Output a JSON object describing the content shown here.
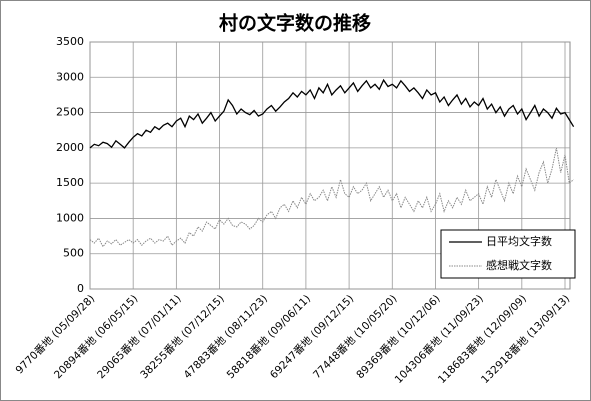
{
  "chart_data": {
    "type": "line",
    "title": "村の文字数の推移",
    "categories": [
      "9770番地 (05/09/28)",
      null,
      null,
      null,
      null,
      null,
      null,
      null,
      null,
      null,
      "20894番地 (06/05/15)",
      null,
      null,
      null,
      null,
      null,
      null,
      null,
      null,
      null,
      "29065番地 (07/01/11)",
      null,
      null,
      null,
      null,
      null,
      null,
      null,
      null,
      null,
      "38255番地 (07/12/15)",
      null,
      null,
      null,
      null,
      null,
      null,
      null,
      null,
      null,
      "47883番地 (08/11/23)",
      null,
      null,
      null,
      null,
      null,
      null,
      null,
      null,
      null,
      "58818番地 (09/06/11)",
      null,
      null,
      null,
      null,
      null,
      null,
      null,
      null,
      null,
      "69247番地 (09/12/15)",
      null,
      null,
      null,
      null,
      null,
      null,
      null,
      null,
      null,
      "77448番地 (10/05/20)",
      null,
      null,
      null,
      null,
      null,
      null,
      null,
      null,
      null,
      "89369番地 (10/12/06)",
      null,
      null,
      null,
      null,
      null,
      null,
      null,
      null,
      null,
      "104306番地 (11/09/23)",
      null,
      null,
      null,
      null,
      null,
      null,
      null,
      null,
      null,
      "118683番地 (12/09/09)",
      null,
      null,
      null,
      null,
      null,
      null,
      null,
      null,
      null,
      "132918番地 (13/09/13)",
      null,
      null
    ],
    "series": [
      {
        "name": "日平均文字数",
        "color": "#000000",
        "values": [
          2000,
          2050,
          2030,
          2080,
          2060,
          2010,
          2100,
          2050,
          2000,
          2080,
          2150,
          2200,
          2170,
          2250,
          2220,
          2300,
          2260,
          2320,
          2350,
          2300,
          2380,
          2420,
          2300,
          2450,
          2400,
          2480,
          2350,
          2420,
          2500,
          2380,
          2450,
          2520,
          2680,
          2600,
          2480,
          2550,
          2500,
          2470,
          2530,
          2450,
          2480,
          2550,
          2600,
          2520,
          2580,
          2650,
          2700,
          2780,
          2720,
          2800,
          2750,
          2820,
          2700,
          2850,
          2780,
          2900,
          2750,
          2820,
          2880,
          2780,
          2850,
          2920,
          2800,
          2880,
          2950,
          2850,
          2900,
          2830,
          2960,
          2870,
          2900,
          2850,
          2950,
          2880,
          2800,
          2850,
          2780,
          2700,
          2820,
          2750,
          2780,
          2650,
          2720,
          2600,
          2680,
          2750,
          2620,
          2700,
          2580,
          2650,
          2600,
          2700,
          2550,
          2620,
          2500,
          2580,
          2450,
          2550,
          2600,
          2480,
          2550,
          2400,
          2500,
          2600,
          2450,
          2550,
          2500,
          2420,
          2560,
          2480,
          2500,
          2400,
          2300
        ]
      },
      {
        "name": "感想戦文字数",
        "color": "#888888",
        "values": [
          700,
          650,
          720,
          600,
          680,
          640,
          700,
          620,
          660,
          700,
          650,
          700,
          620,
          680,
          720,
          650,
          700,
          680,
          750,
          620,
          680,
          720,
          650,
          800,
          750,
          880,
          820,
          950,
          900,
          850,
          980,
          920,
          1000,
          900,
          880,
          950,
          920,
          850,
          900,
          1000,
          950,
          1050,
          1100,
          1000,
          1150,
          1200,
          1100,
          1250,
          1150,
          1300,
          1200,
          1350,
          1250,
          1300,
          1400,
          1250,
          1450,
          1300,
          1550,
          1350,
          1300,
          1450,
          1350,
          1400,
          1500,
          1250,
          1350,
          1450,
          1300,
          1400,
          1250,
          1350,
          1150,
          1300,
          1200,
          1100,
          1250,
          1150,
          1300,
          1100,
          1200,
          1350,
          1100,
          1250,
          1150,
          1300,
          1200,
          1400,
          1250,
          1300,
          1350,
          1200,
          1450,
          1300,
          1550,
          1400,
          1250,
          1500,
          1350,
          1600,
          1450,
          1700,
          1550,
          1400,
          1650,
          1800,
          1500,
          1700,
          2000,
          1650,
          1900,
          1500,
          1550
        ]
      }
    ],
    "ylim": [
      0,
      3500
    ],
    "yticks": [
      0,
      500,
      1000,
      1500,
      2000,
      2500,
      3000,
      3500
    ],
    "grid": true
  }
}
